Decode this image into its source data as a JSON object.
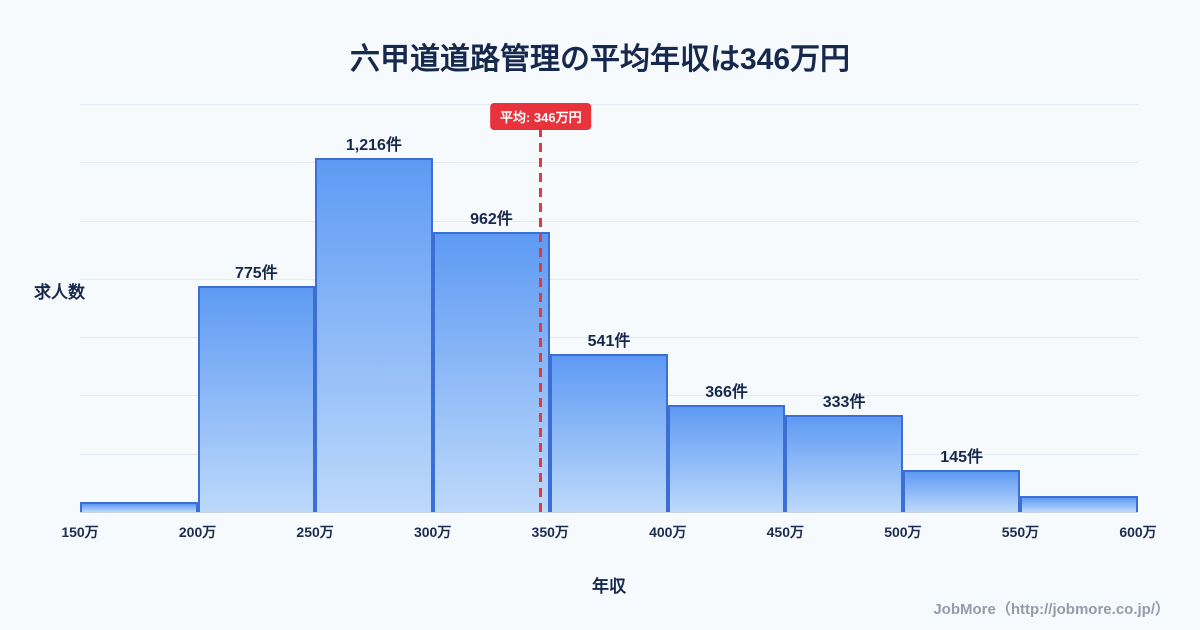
{
  "title": "六甲道道路管理の平均年収は346万円",
  "y_axis_label": "求人数",
  "x_axis_label": "年収",
  "average_badge": "平均: 346万円",
  "footer": "JobMore（http://jobmore.co.jp/）",
  "colors": {
    "background": "#f7fafd",
    "bar_top": "#5e9af3",
    "bar_bottom": "#bdd9fb",
    "bar_border": "#3b6fd6",
    "average_line": "#e23a3a",
    "badge_background": "#e8323c",
    "title_text": "#16294d",
    "gridline": "#e5ebf4"
  },
  "chart_data": {
    "type": "bar",
    "subtype": "histogram",
    "title": "六甲道道路管理の平均年収は346万円",
    "xlabel": "年収",
    "ylabel": "求人数",
    "bin_edge_labels": [
      "150万",
      "200万",
      "250万",
      "300万",
      "350万",
      "400万",
      "450万",
      "500万",
      "550万",
      "600万"
    ],
    "bin_edge_values": [
      150,
      200,
      250,
      300,
      350,
      400,
      450,
      500,
      550,
      600
    ],
    "values": [
      35,
      775,
      1216,
      962,
      541,
      366,
      333,
      145,
      55
    ],
    "bar_labels": [
      "",
      "775件",
      "1,216件",
      "962件",
      "541件",
      "366件",
      "333件",
      "145件",
      ""
    ],
    "average_value": 346,
    "x_range": [
      150,
      600
    ],
    "ylim": [
      0,
      1400
    ],
    "grid_step": 200,
    "grid": true,
    "legend": false
  }
}
